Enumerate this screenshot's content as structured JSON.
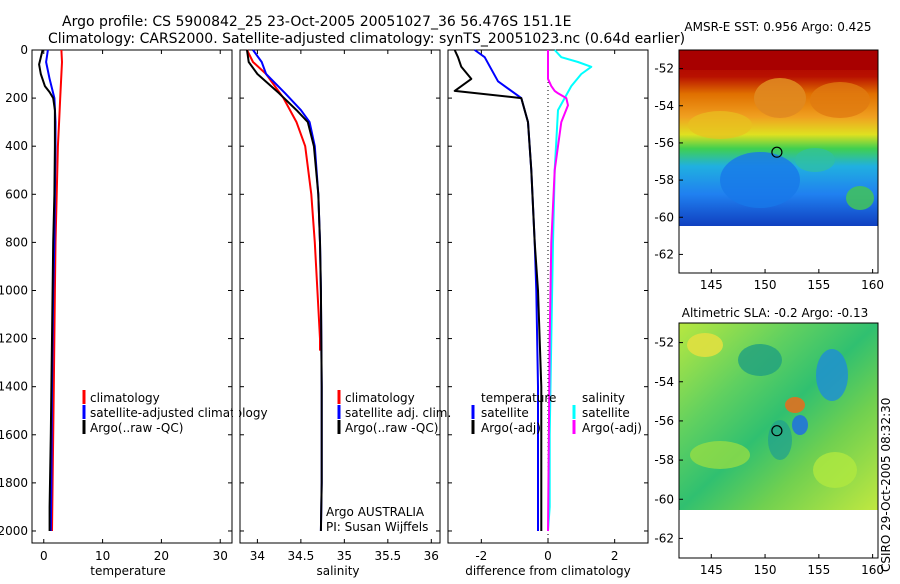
{
  "header": {
    "line1": "Argo profile: CS 5900842_25 23-Oct-2005 20051027_36 56.476S 151.1E",
    "line2": "Climatology: CARS2000. Satellite-adjusted climatology: synTS_20051023.nc (0.64d earlier)"
  },
  "colors": {
    "climatology": "#ff0000",
    "satellite": "#0000ff",
    "argo": "#000000",
    "sal_sat": "#00ffff",
    "sal_argo": "#ff00ff"
  },
  "chart_data": [
    {
      "type": "line",
      "name": "temperature-profile",
      "xlabel": "temperature",
      "ylabel": "",
      "xlim": [
        -2,
        32
      ],
      "ylim": [
        2050,
        0
      ],
      "xticks": [
        0,
        10,
        20,
        30
      ],
      "yticks": [
        0,
        200,
        400,
        600,
        800,
        1000,
        1200,
        1400,
        1600,
        1800,
        2000
      ],
      "series": [
        {
          "name": "climatology",
          "color": "#ff0000",
          "x": [
            3.0,
            3.1,
            3.0,
            2.8,
            2.6,
            2.4,
            2.2,
            2.0,
            1.9,
            1.7,
            1.5,
            1.4
          ],
          "y": [
            0,
            50,
            100,
            200,
            300,
            400,
            600,
            800,
            1000,
            1400,
            1800,
            2000
          ]
        },
        {
          "name": "satellite-adjusted climatology",
          "color": "#0000ff",
          "x": [
            0.7,
            0.4,
            1.0,
            1.4,
            1.8,
            2.0,
            2.0,
            1.9,
            1.8,
            1.6,
            1.4,
            1.3,
            1.2
          ],
          "y": [
            0,
            50,
            120,
            160,
            200,
            300,
            400,
            600,
            800,
            1000,
            1400,
            1800,
            2000
          ]
        },
        {
          "name": "Argo(..raw -QC)",
          "color": "#000000",
          "x": [
            -0.2,
            -0.8,
            -0.5,
            0.2,
            1.0,
            1.6,
            1.9,
            1.9,
            1.8,
            1.6,
            1.4,
            1.2,
            1.0,
            1.0
          ],
          "y": [
            0,
            60,
            100,
            150,
            175,
            200,
            250,
            400,
            600,
            800,
            1200,
            1600,
            1900,
            2000
          ]
        }
      ],
      "legend": [
        "climatology",
        "satellite-adjusted climatology",
        "Argo(..raw -QC)"
      ]
    },
    {
      "type": "line",
      "name": "salinity-profile",
      "xlabel": "salinity",
      "ylabel": "",
      "xlim": [
        33.8,
        36.1
      ],
      "xticks": [
        34,
        34.5,
        35,
        35.5,
        36
      ],
      "series": [
        {
          "name": "climatology",
          "color": "#ff0000",
          "x": [
            33.88,
            33.95,
            34.1,
            34.3,
            34.45,
            34.55,
            34.62,
            34.66,
            34.69,
            34.72,
            34.72
          ],
          "y": [
            0,
            50,
            100,
            200,
            300,
            400,
            600,
            800,
            1000,
            1200,
            1250
          ]
        },
        {
          "name": "satellite adj. clim.",
          "color": "#0000ff",
          "x": [
            33.95,
            34.05,
            34.1,
            34.32,
            34.5,
            34.6,
            34.66,
            34.7,
            34.72,
            34.73,
            34.74,
            34.74,
            34.73
          ],
          "y": [
            0,
            50,
            100,
            180,
            250,
            300,
            400,
            600,
            800,
            1000,
            1400,
            1800,
            2000
          ]
        },
        {
          "name": "Argo(..raw -QC)",
          "color": "#000000",
          "x": [
            33.88,
            33.9,
            34.0,
            34.25,
            34.45,
            34.58,
            34.65,
            34.7,
            34.72,
            34.73,
            34.74,
            34.74,
            34.73
          ],
          "y": [
            0,
            50,
            100,
            180,
            250,
            300,
            400,
            600,
            800,
            1000,
            1400,
            1800,
            2000
          ]
        }
      ],
      "legend": [
        "climatology",
        "satellite adj. clim.",
        "Argo(..raw -QC)"
      ],
      "annotation_line1": "Argo AUSTRALIA",
      "annotation_line2": "PI: Susan Wijffels"
    },
    {
      "type": "line",
      "name": "difference-profile",
      "xlabel": "difference from climatology",
      "ylabel": "",
      "xlim": [
        -3,
        3
      ],
      "xticks": [
        -2,
        0,
        2
      ],
      "zero_line": true,
      "series": [
        {
          "name": "temperature satellite",
          "color": "#0000ff",
          "x": [
            -2.2,
            -1.9,
            -1.7,
            -1.5,
            -0.8,
            -0.6,
            -0.5,
            -0.4,
            -0.35,
            -0.3,
            -0.3,
            -0.3
          ],
          "y": [
            0,
            30,
            80,
            130,
            200,
            300,
            500,
            800,
            1000,
            1400,
            1800,
            2000
          ]
        },
        {
          "name": "temperature Argo(-adj)",
          "color": "#000000",
          "x": [
            -2.8,
            -2.7,
            -2.6,
            -2.3,
            -2.8,
            -0.8,
            -0.6,
            -0.5,
            -0.4,
            -0.3,
            -0.2,
            -0.2
          ],
          "y": [
            0,
            30,
            70,
            120,
            170,
            200,
            300,
            500,
            800,
            1000,
            1400,
            2000
          ]
        },
        {
          "name": "salinity satellite",
          "color": "#00ffff",
          "x": [
            0.2,
            0.4,
            0.9,
            1.3,
            1.0,
            0.7,
            0.3,
            0.2,
            0.15,
            0.1,
            0.05,
            0.05,
            0.0
          ],
          "y": [
            0,
            30,
            50,
            70,
            100,
            150,
            250,
            500,
            800,
            1200,
            1600,
            1900,
            2000
          ]
        },
        {
          "name": "salinity Argo(-adj)",
          "color": "#ff00ff",
          "x": [
            0.0,
            0.0,
            0.0,
            0.1,
            0.2,
            0.3,
            0.55,
            0.6,
            0.4,
            0.2,
            0.1,
            0.05,
            0.0
          ],
          "y": [
            0,
            60,
            120,
            150,
            170,
            180,
            200,
            230,
            300,
            500,
            800,
            1200,
            2000
          ]
        }
      ],
      "legend_temperature_title": "temperature",
      "legend_salinity_title": "salinity",
      "legend": [
        "satellite",
        "Argo(-adj)",
        "satellite",
        "Argo(-adj)"
      ]
    },
    {
      "type": "heatmap",
      "name": "sst-map",
      "title": "AMSR-E SST: 0.956  Argo: 0.425",
      "xlim": [
        142,
        160.5
      ],
      "ylim": [
        -63,
        -51
      ],
      "xticks": [
        145,
        150,
        155,
        160
      ],
      "yticks": [
        -52,
        -54,
        -56,
        -58,
        -60,
        -62
      ],
      "argo_position": [
        151.1,
        -56.5
      ]
    },
    {
      "type": "heatmap",
      "name": "sla-map",
      "title": "Altimetric SLA: -0.2  Argo: -0.13",
      "xlim": [
        142,
        160.5
      ],
      "ylim": [
        -63,
        -51
      ],
      "xticks": [
        145,
        150,
        155,
        160
      ],
      "yticks": [
        -52,
        -54,
        -56,
        -58,
        -60,
        -62
      ],
      "argo_position": [
        151.1,
        -56.5
      ]
    }
  ],
  "sidebar_stamp": "CSIRO 29-Oct-2005 08:32:30"
}
